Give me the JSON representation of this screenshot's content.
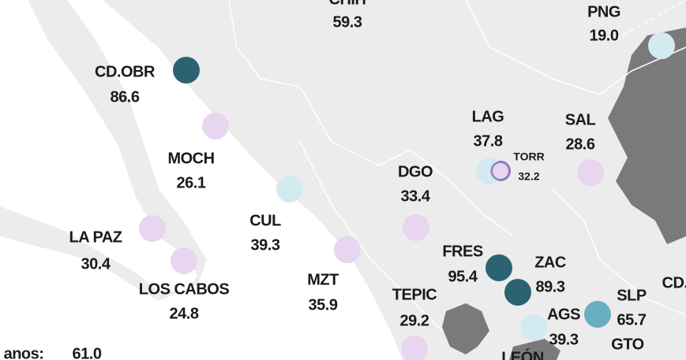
{
  "cities": [
    {
      "label": "CHIH",
      "value": 59.3,
      "color": null
    },
    {
      "label": "PNG",
      "value": 19,
      "value_label": "19.0",
      "color": "#d3ebf0"
    },
    {
      "label": "CD.OBR",
      "value": 86.6,
      "color": "#2b6373"
    },
    {
      "label": "MOCH",
      "value": 26.1,
      "color": "#e8d5ef"
    },
    {
      "label": "LAG",
      "value": 37.8,
      "color": "#d3ebf0"
    },
    {
      "label": "TORR",
      "value": 32.2,
      "color": "#e8d5ef"
    },
    {
      "label": "SAL",
      "value": 28.6,
      "color": "#e8d5ef"
    },
    {
      "label": "DGO",
      "value": 33.4,
      "color": "#e8d5ef"
    },
    {
      "label": "CUL",
      "value": 39.3,
      "color": "#d3ebf0"
    },
    {
      "label": "LA PAZ",
      "value": 30.4,
      "color": "#e8d5ef"
    },
    {
      "label": "LOS CABOS",
      "value": 24.8,
      "color": "#e8d5ef"
    },
    {
      "label": "MZT",
      "value": 35.9,
      "color": "#e8d5ef"
    },
    {
      "label": "FRES",
      "value": 95.4,
      "color": "#2b6373"
    },
    {
      "label": "ZAC",
      "value": 89.3,
      "color": "#2b6373"
    },
    {
      "label": "TEPIC",
      "value": 29.2,
      "color": "#e8d5ef"
    },
    {
      "label": "AGS",
      "value": 39.3,
      "color": "#d3ebf0"
    },
    {
      "label": "SLP",
      "value": 65.7,
      "color": "#6aaec2"
    }
  ],
  "other_labels": [
    "GTO",
    "CD.",
    "LEÓN"
  ],
  "footer": {
    "label": "anos:",
    "value": 61,
    "value_label": "61.0"
  }
}
